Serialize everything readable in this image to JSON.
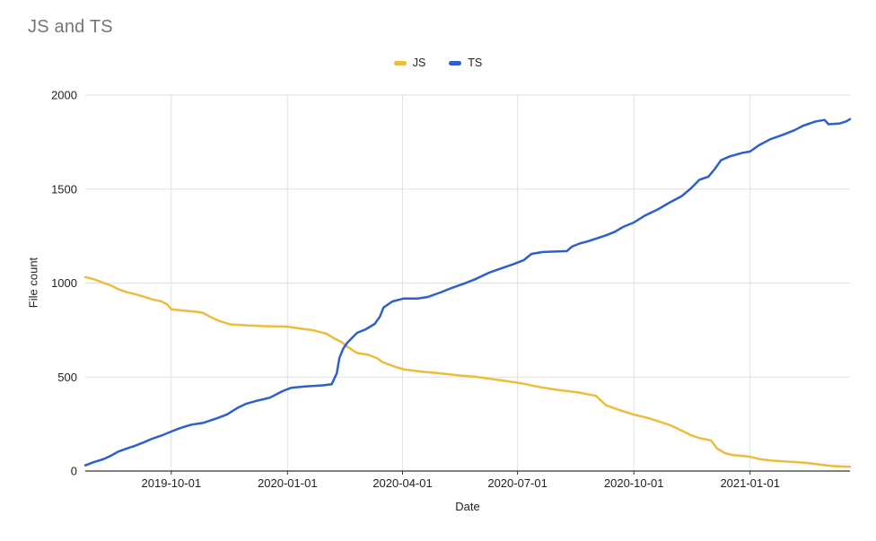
{
  "chart_data": {
    "type": "line",
    "title": "JS and TS",
    "xlabel": "Date",
    "ylabel": "File count",
    "legend_position": "top-center",
    "grid": true,
    "ylim": [
      0,
      2000
    ],
    "y_ticks": [
      0,
      500,
      1000,
      1500,
      2000
    ],
    "x_ticks": [
      "2019-10-01",
      "2020-01-01",
      "2020-04-01",
      "2020-07-01",
      "2020-10-01",
      "2021-01-01"
    ],
    "x_range": [
      "2019-07-25",
      "2021-03-21"
    ],
    "colors": {
      "grid": "#e2e2e2",
      "axis": "#333333",
      "tick_text": "#222222",
      "title_text": "#757575"
    },
    "series": [
      {
        "name": "JS",
        "color": "#ebbd3c",
        "points": [
          [
            "2019-07-25",
            1032
          ],
          [
            "2019-08-01",
            1020
          ],
          [
            "2019-08-08",
            1002
          ],
          [
            "2019-08-14",
            988
          ],
          [
            "2019-08-20",
            968
          ],
          [
            "2019-08-26",
            953
          ],
          [
            "2019-09-02",
            942
          ],
          [
            "2019-09-09",
            928
          ],
          [
            "2019-09-16",
            913
          ],
          [
            "2019-09-23",
            903
          ],
          [
            "2019-09-28",
            886
          ],
          [
            "2019-10-01",
            860
          ],
          [
            "2019-10-10",
            854
          ],
          [
            "2019-10-19",
            848
          ],
          [
            "2019-10-26",
            842
          ],
          [
            "2019-11-01",
            820
          ],
          [
            "2019-11-08",
            798
          ],
          [
            "2019-11-17",
            780
          ],
          [
            "2019-12-01",
            774
          ],
          [
            "2019-12-15",
            771
          ],
          [
            "2020-01-01",
            768
          ],
          [
            "2020-01-12",
            757
          ],
          [
            "2020-01-22",
            748
          ],
          [
            "2020-02-01",
            730
          ],
          [
            "2020-02-07",
            705
          ],
          [
            "2020-02-13",
            685
          ],
          [
            "2020-02-17",
            663
          ],
          [
            "2020-02-25",
            628
          ],
          [
            "2020-03-05",
            618
          ],
          [
            "2020-03-12",
            600
          ],
          [
            "2020-03-16",
            580
          ],
          [
            "2020-03-25",
            557
          ],
          [
            "2020-04-02",
            541
          ],
          [
            "2020-04-17",
            528
          ],
          [
            "2020-05-01",
            520
          ],
          [
            "2020-05-15",
            509
          ],
          [
            "2020-05-29",
            501
          ],
          [
            "2020-06-12",
            488
          ],
          [
            "2020-06-27",
            474
          ],
          [
            "2020-07-06",
            464
          ],
          [
            "2020-07-20",
            445
          ],
          [
            "2020-08-03",
            430
          ],
          [
            "2020-08-18",
            418
          ],
          [
            "2020-09-01",
            400
          ],
          [
            "2020-09-09",
            350
          ],
          [
            "2020-09-18",
            328
          ],
          [
            "2020-10-01",
            300
          ],
          [
            "2020-10-10",
            286
          ],
          [
            "2020-10-20",
            266
          ],
          [
            "2020-10-29",
            246
          ],
          [
            "2020-11-08",
            215
          ],
          [
            "2020-11-15",
            191
          ],
          [
            "2020-11-22",
            175
          ],
          [
            "2020-12-01",
            163
          ],
          [
            "2020-12-06",
            119
          ],
          [
            "2020-12-12",
            95
          ],
          [
            "2020-12-19",
            84
          ],
          [
            "2020-12-28",
            79
          ],
          [
            "2021-01-01",
            76
          ],
          [
            "2021-01-08",
            64
          ],
          [
            "2021-01-17",
            56
          ],
          [
            "2021-01-27",
            51
          ],
          [
            "2021-02-05",
            48
          ],
          [
            "2021-02-15",
            43
          ],
          [
            "2021-02-25",
            35
          ],
          [
            "2021-03-06",
            27
          ],
          [
            "2021-03-15",
            24
          ],
          [
            "2021-03-21",
            22
          ]
        ]
      },
      {
        "name": "TS",
        "color": "#2d5fcd",
        "points": [
          [
            "2019-07-25",
            30
          ],
          [
            "2019-08-01",
            48
          ],
          [
            "2019-08-08",
            62
          ],
          [
            "2019-08-14",
            80
          ],
          [
            "2019-08-20",
            103
          ],
          [
            "2019-08-26",
            118
          ],
          [
            "2019-09-02",
            133
          ],
          [
            "2019-09-09",
            152
          ],
          [
            "2019-09-16",
            172
          ],
          [
            "2019-09-23",
            188
          ],
          [
            "2019-10-01",
            210
          ],
          [
            "2019-10-08",
            228
          ],
          [
            "2019-10-17",
            247
          ],
          [
            "2019-10-26",
            256
          ],
          [
            "2019-11-05",
            278
          ],
          [
            "2019-11-14",
            300
          ],
          [
            "2019-11-23",
            338
          ],
          [
            "2019-11-29",
            357
          ],
          [
            "2019-12-08",
            374
          ],
          [
            "2019-12-18",
            390
          ],
          [
            "2019-12-28",
            425
          ],
          [
            "2020-01-04",
            443
          ],
          [
            "2020-01-15",
            450
          ],
          [
            "2020-01-29",
            456
          ],
          [
            "2020-02-05",
            462
          ],
          [
            "2020-02-09",
            520
          ],
          [
            "2020-02-11",
            600
          ],
          [
            "2020-02-14",
            650
          ],
          [
            "2020-02-17",
            680
          ],
          [
            "2020-02-25",
            735
          ],
          [
            "2020-03-03",
            754
          ],
          [
            "2020-03-10",
            783
          ],
          [
            "2020-03-14",
            820
          ],
          [
            "2020-03-17",
            870
          ],
          [
            "2020-03-24",
            902
          ],
          [
            "2020-04-02",
            918
          ],
          [
            "2020-04-13",
            918
          ],
          [
            "2020-04-21",
            926
          ],
          [
            "2020-05-01",
            950
          ],
          [
            "2020-05-10",
            974
          ],
          [
            "2020-05-20",
            998
          ],
          [
            "2020-05-29",
            1022
          ],
          [
            "2020-06-08",
            1054
          ],
          [
            "2020-06-18",
            1078
          ],
          [
            "2020-06-27",
            1099
          ],
          [
            "2020-07-06",
            1122
          ],
          [
            "2020-07-12",
            1155
          ],
          [
            "2020-07-21",
            1165
          ],
          [
            "2020-08-09",
            1170
          ],
          [
            "2020-08-13",
            1194
          ],
          [
            "2020-08-19",
            1210
          ],
          [
            "2020-08-26",
            1223
          ],
          [
            "2020-09-02",
            1238
          ],
          [
            "2020-09-09",
            1254
          ],
          [
            "2020-09-16",
            1273
          ],
          [
            "2020-09-23",
            1300
          ],
          [
            "2020-10-01",
            1322
          ],
          [
            "2020-10-10",
            1360
          ],
          [
            "2020-10-20",
            1392
          ],
          [
            "2020-10-29",
            1427
          ],
          [
            "2020-11-08",
            1463
          ],
          [
            "2020-11-15",
            1503
          ],
          [
            "2020-11-22",
            1550
          ],
          [
            "2020-11-29",
            1566
          ],
          [
            "2020-12-04",
            1606
          ],
          [
            "2020-12-09",
            1654
          ],
          [
            "2020-12-16",
            1674
          ],
          [
            "2020-12-26",
            1693
          ],
          [
            "2021-01-01",
            1700
          ],
          [
            "2021-01-08",
            1733
          ],
          [
            "2021-01-17",
            1765
          ],
          [
            "2021-01-27",
            1789
          ],
          [
            "2021-02-05",
            1813
          ],
          [
            "2021-02-12",
            1837
          ],
          [
            "2021-02-22",
            1860
          ],
          [
            "2021-03-01",
            1868
          ],
          [
            "2021-03-04",
            1845
          ],
          [
            "2021-03-13",
            1849
          ],
          [
            "2021-03-18",
            1860
          ],
          [
            "2021-03-21",
            1872
          ]
        ]
      }
    ]
  }
}
